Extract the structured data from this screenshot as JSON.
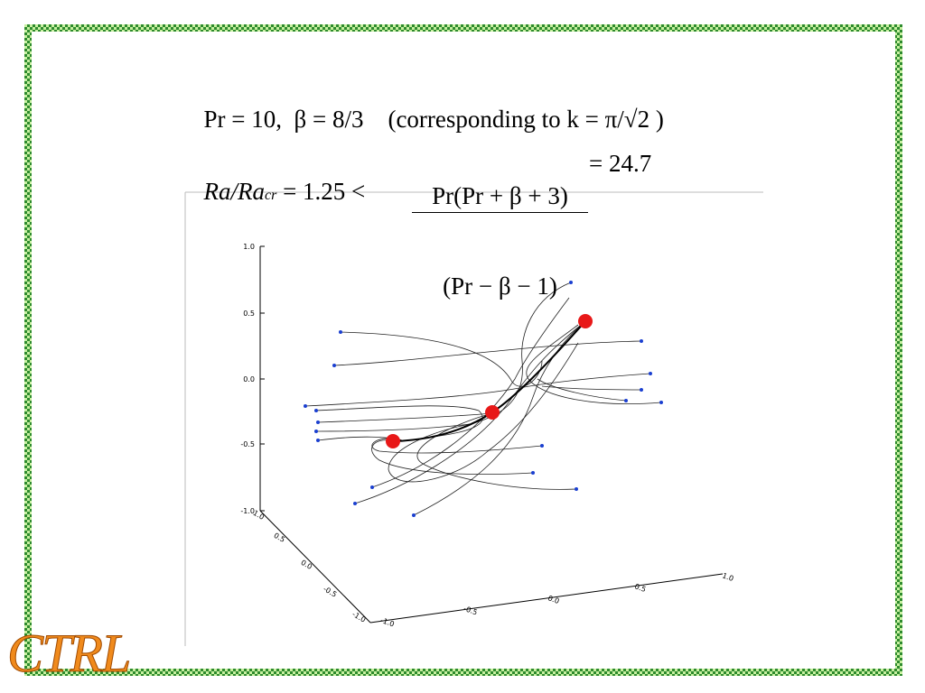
{
  "equations": {
    "line1": {
      "params": "Pr = 10,  β = 8/3",
      "note": "(corresponding to k = π/√2 )"
    },
    "line2": {
      "lhs": "Ra/Ra",
      "lhs_sub": "cr",
      "relation": "= 1.25 <",
      "numerator": "Pr(Pr + β + 3)",
      "denominator": "(Pr − β − 1)",
      "result": "= 24.7"
    }
  },
  "plot": {
    "z_ticks": [
      "1.0",
      "0.5",
      "0.0",
      "-0.5",
      "-1.0"
    ],
    "y_ticks": [
      "1.0",
      "0.5",
      "0.0",
      "-0.5",
      "-1.0"
    ],
    "x_ticks": [
      "-1.0",
      "-0.5",
      "0.0",
      "0.5",
      "1.0"
    ]
  },
  "logo": "CTRL"
}
